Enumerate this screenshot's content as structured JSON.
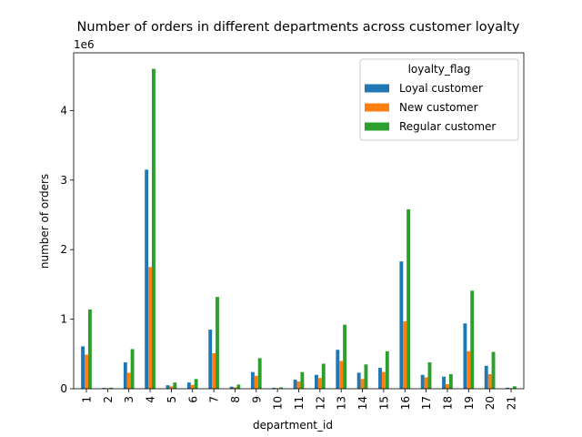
{
  "chart_data": {
    "type": "bar",
    "title": "Number of orders in different departments across customer loyalty",
    "xlabel": "department_id",
    "ylabel": "number of orders",
    "y_offset_label": "1e6",
    "ylim": [
      0,
      4830000
    ],
    "yticks": [
      0,
      1,
      2,
      3,
      4
    ],
    "grid": false,
    "legend": {
      "title": "loyalty_flag",
      "placement": "top-right"
    },
    "categories": [
      "1",
      "2",
      "3",
      "4",
      "5",
      "6",
      "7",
      "8",
      "9",
      "10",
      "11",
      "12",
      "13",
      "14",
      "15",
      "16",
      "17",
      "18",
      "19",
      "20",
      "21"
    ],
    "series": [
      {
        "name": "Loyal customer",
        "color": "#1f77b4",
        "values": [
          610000,
          12000,
          380000,
          3150000,
          50000,
          90000,
          850000,
          30000,
          240000,
          14000,
          130000,
          200000,
          560000,
          230000,
          300000,
          1830000,
          200000,
          175000,
          940000,
          330000,
          15000
        ]
      },
      {
        "name": "New customer",
        "color": "#ff7f0e",
        "values": [
          490000,
          7000,
          230000,
          1750000,
          35000,
          55000,
          510000,
          20000,
          185000,
          8000,
          105000,
          155000,
          400000,
          140000,
          240000,
          970000,
          165000,
          65000,
          540000,
          210000,
          9000
        ]
      },
      {
        "name": "Regular customer",
        "color": "#2ca02c",
        "values": [
          1140000,
          16000,
          570000,
          4600000,
          90000,
          140000,
          1320000,
          60000,
          440000,
          20000,
          240000,
          360000,
          920000,
          350000,
          540000,
          2580000,
          380000,
          210000,
          1410000,
          530000,
          35000
        ]
      }
    ]
  }
}
